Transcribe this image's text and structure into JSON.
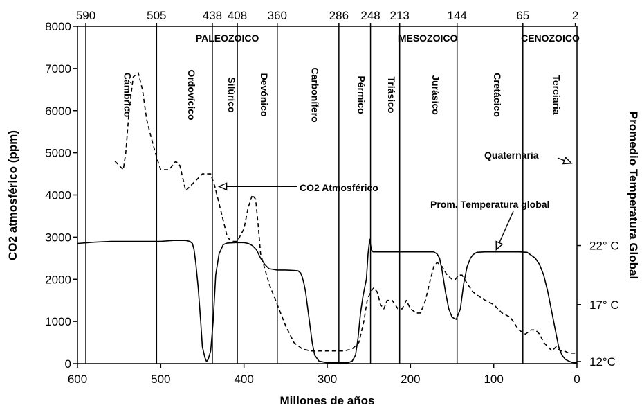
{
  "chart_data": {
    "type": "line",
    "xlabel": "Millones de años",
    "ylabel": "CO2 atmosférico (ppm)",
    "ylabel_right": "Promedio Temperatura Global",
    "xlim": [
      600,
      0
    ],
    "ylim": [
      0,
      8000
    ],
    "x_ticks": [
      "600",
      "500",
      "400",
      "300",
      "200",
      "100",
      "0"
    ],
    "y_ticks": [
      "0",
      "1000",
      "2000",
      "3000",
      "4000",
      "5000",
      "6000",
      "7000",
      "8000"
    ],
    "top_boundaries": [
      {
        "x": 590,
        "label": "590"
      },
      {
        "x": 505,
        "label": "505"
      },
      {
        "x": 438,
        "label": "438"
      },
      {
        "x": 408,
        "label": "408"
      },
      {
        "x": 360,
        "label": "360"
      },
      {
        "x": 286,
        "label": "286"
      },
      {
        "x": 248,
        "label": "248"
      },
      {
        "x": 213,
        "label": "213"
      },
      {
        "x": 144,
        "label": "144"
      },
      {
        "x": 65,
        "label": "65"
      },
      {
        "x": 2,
        "label": "2"
      }
    ],
    "periods": [
      {
        "name": "Cámbrico",
        "x": 548
      },
      {
        "name": "Ordovícico",
        "x": 471
      },
      {
        "name": "Silúrico",
        "x": 423
      },
      {
        "name": "Devónico",
        "x": 384
      },
      {
        "name": "Carbonífero",
        "x": 323
      },
      {
        "name": "Pérmico",
        "x": 267
      },
      {
        "name": "Triásico",
        "x": 231
      },
      {
        "name": "Jurásico",
        "x": 178
      },
      {
        "name": "Cretácico",
        "x": 104
      },
      {
        "name": "Terciaria",
        "x": 33
      }
    ],
    "eras": [
      {
        "name": "PALEOZOICO",
        "x": 420
      },
      {
        "name": "MESOZOICO",
        "x": 179
      },
      {
        "name": "CENOZOICO",
        "x": 32
      }
    ],
    "right_ticks": [
      {
        "label": "22° C",
        "y_ppm": 2800
      },
      {
        "label": "17° C",
        "y_ppm": 1400
      },
      {
        "label": "12°C",
        "y_ppm": 50
      }
    ],
    "series": [
      {
        "name": "CO2 Atmosférico",
        "style": "dashed",
        "x": [
          555,
          550,
          545,
          542,
          538,
          533,
          527,
          522,
          517,
          512,
          505,
          500,
          490,
          482,
          477,
          470,
          460,
          450,
          440,
          435,
          430,
          425,
          420,
          415,
          408,
          400,
          395,
          390,
          386,
          383,
          380,
          370,
          360,
          350,
          340,
          330,
          320,
          310,
          300,
          290,
          280,
          270,
          262,
          256,
          252,
          248,
          244,
          240,
          236,
          232,
          228,
          222,
          215,
          210,
          205,
          200,
          193,
          188,
          182,
          176,
          172,
          168,
          162,
          156,
          150,
          146,
          142,
          138,
          132,
          125,
          118,
          110,
          100,
          90,
          80,
          70,
          62,
          55,
          50,
          45,
          40,
          35,
          30,
          25,
          20,
          15,
          10,
          5,
          1
        ],
        "values": [
          4800,
          4700,
          4600,
          5000,
          6000,
          6800,
          6900,
          6500,
          5800,
          5400,
          4900,
          4600,
          4600,
          4800,
          4700,
          4100,
          4300,
          4500,
          4500,
          4200,
          3800,
          3400,
          3000,
          2900,
          2900,
          3200,
          3700,
          4000,
          3900,
          3300,
          2600,
          1900,
          1400,
          900,
          500,
          350,
          300,
          300,
          300,
          300,
          300,
          350,
          500,
          1000,
          1500,
          1700,
          1800,
          1700,
          1400,
          1300,
          1500,
          1500,
          1300,
          1300,
          1500,
          1300,
          1200,
          1200,
          1500,
          2000,
          2300,
          2400,
          2300,
          2100,
          2000,
          2000,
          2100,
          2100,
          1900,
          1700,
          1600,
          1500,
          1400,
          1200,
          1100,
          800,
          700,
          800,
          800,
          700,
          500,
          400,
          300,
          400,
          300,
          300,
          250,
          250,
          250
        ]
      },
      {
        "name": "Prom. Temperatura global",
        "style": "solid",
        "x": [
          600,
          580,
          560,
          540,
          520,
          500,
          485,
          470,
          465,
          462,
          460,
          458,
          455,
          452,
          450,
          447,
          445,
          443,
          440,
          437,
          434,
          430,
          425,
          420,
          410,
          400,
          395,
          390,
          385,
          380,
          375,
          370,
          360,
          350,
          340,
          335,
          332,
          330,
          328,
          326,
          324,
          322,
          320,
          318,
          315,
          310,
          300,
          290,
          280,
          275,
          270,
          266,
          263,
          260,
          257,
          255,
          253,
          251,
          249,
          247,
          245,
          243,
          240,
          220,
          200,
          180,
          172,
          168,
          165,
          162,
          158,
          154,
          150,
          145,
          140,
          136,
          132,
          128,
          125,
          122,
          120,
          110,
          100,
          90,
          80,
          70,
          60,
          50,
          45,
          40,
          35,
          30,
          26,
          22,
          18,
          14,
          10,
          6,
          3,
          0
        ],
        "values": [
          2850,
          2880,
          2900,
          2900,
          2900,
          2900,
          2920,
          2920,
          2900,
          2850,
          2700,
          2400,
          1800,
          1000,
          400,
          150,
          50,
          100,
          300,
          1000,
          2100,
          2600,
          2820,
          2860,
          2870,
          2870,
          2850,
          2800,
          2700,
          2500,
          2350,
          2250,
          2220,
          2220,
          2210,
          2200,
          2150,
          2050,
          1900,
          1700,
          1400,
          1100,
          800,
          500,
          200,
          60,
          20,
          20,
          20,
          20,
          60,
          200,
          600,
          1200,
          1600,
          1800,
          2000,
          2600,
          2950,
          2700,
          2650,
          2650,
          2650,
          2650,
          2650,
          2650,
          2650,
          2600,
          2500,
          2200,
          1700,
          1300,
          1100,
          1050,
          1300,
          1900,
          2300,
          2500,
          2580,
          2620,
          2640,
          2650,
          2650,
          2650,
          2650,
          2650,
          2640,
          2500,
          2350,
          2100,
          1700,
          1200,
          800,
          400,
          200,
          100,
          60,
          30,
          20,
          20
        ]
      }
    ],
    "annotations": [
      {
        "text": "CO2 Atmosférico",
        "target_x": 430,
        "target_y": 4200
      },
      {
        "text": "Prom. Temperatura global",
        "target_x": 97,
        "target_y": 2700
      },
      {
        "text": "Quaternaria",
        "target_x": 5,
        "target_y": 4750
      }
    ],
    "grid": false,
    "legend": "none"
  }
}
